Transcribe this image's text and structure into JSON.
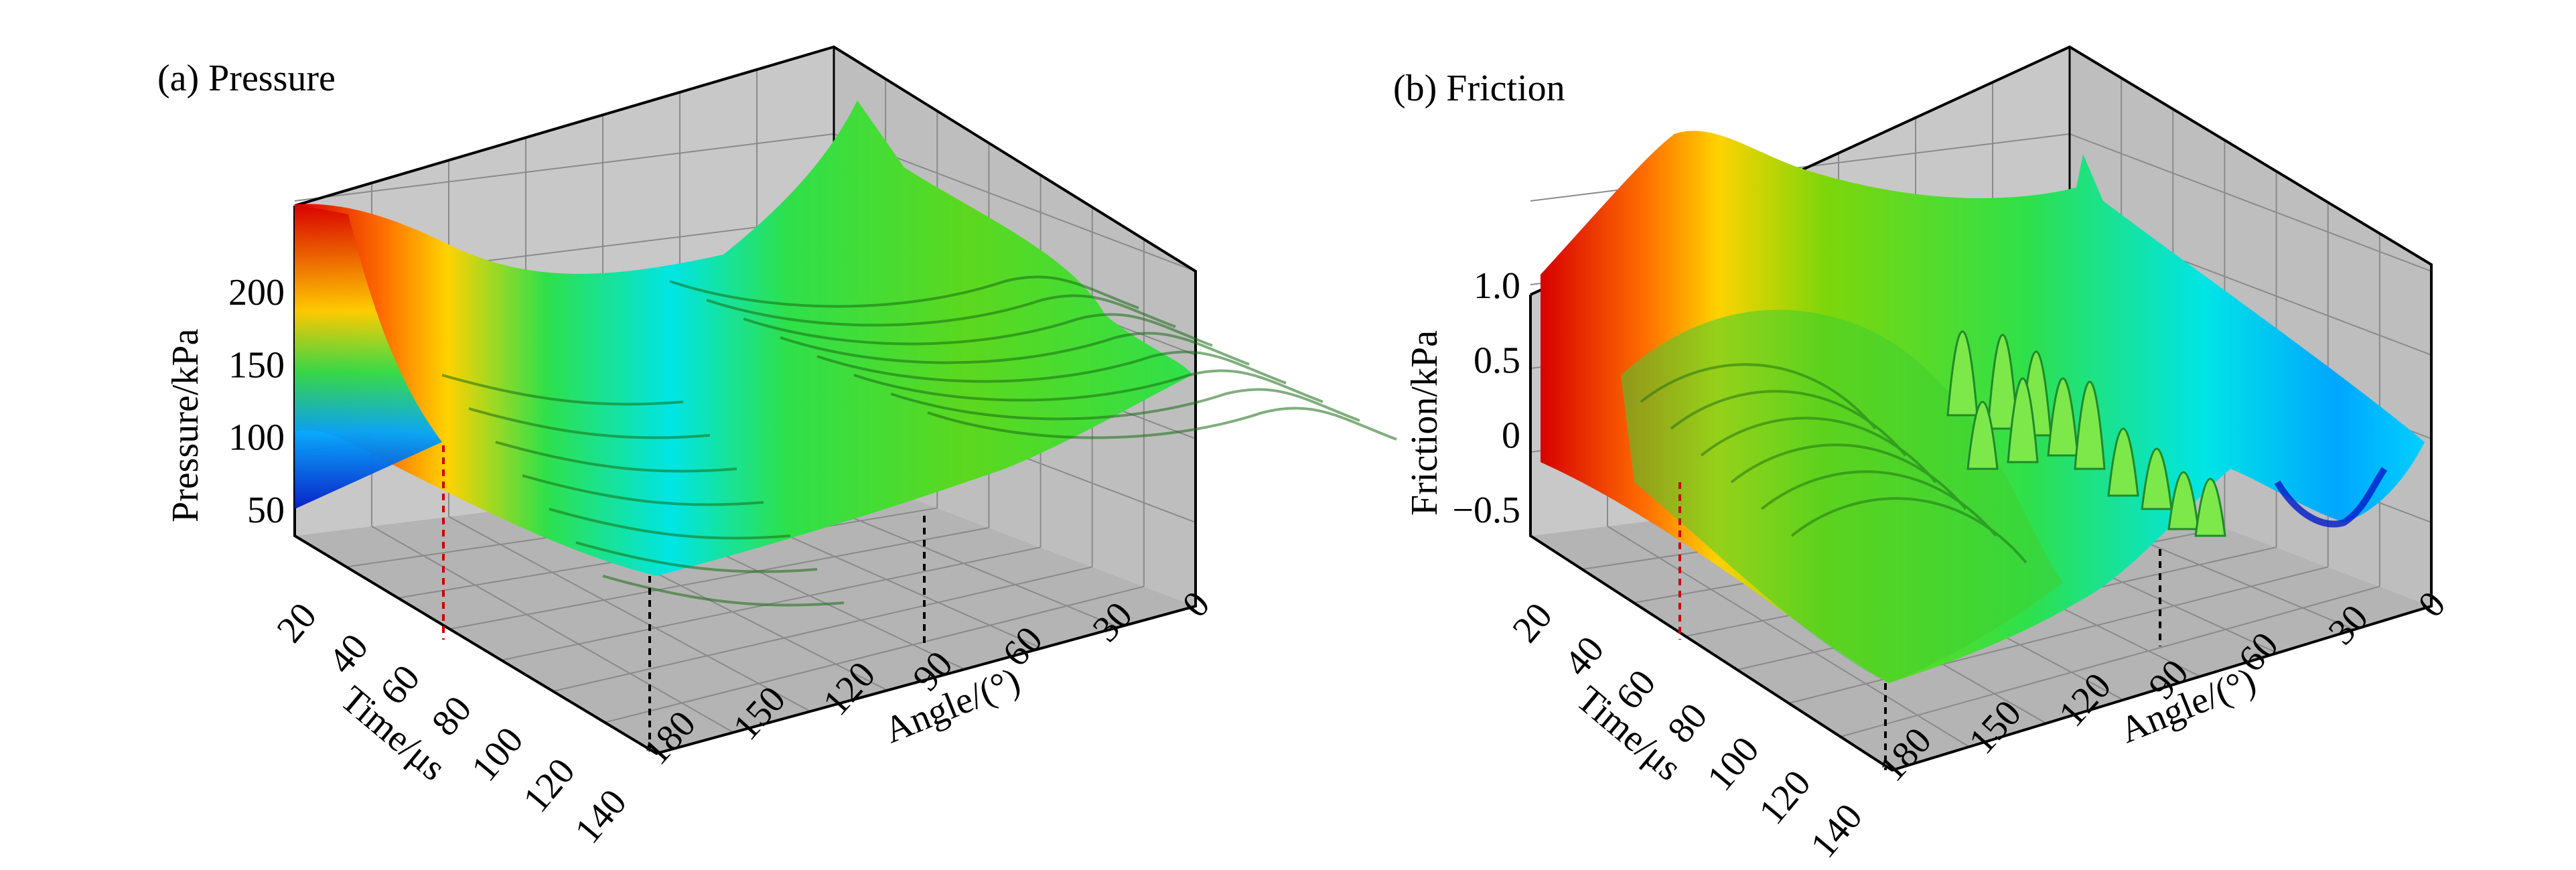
{
  "chart_data": [
    {
      "type": "surface3d",
      "title": "(a) Pressure",
      "zlabel": "Pressure/kPa",
      "xlabel": "Time/μs",
      "ylabel": "Angle/(°)",
      "x_ticks": [
        "20",
        "40",
        "60",
        "80",
        "100",
        "120",
        "140"
      ],
      "y_ticks": [
        "180",
        "150",
        "120",
        "90",
        "60",
        "30",
        "0"
      ],
      "z_ticks": [
        "50",
        "100",
        "150",
        "200"
      ],
      "xlim": [
        10,
        140
      ],
      "ylim": [
        0,
        180
      ],
      "zlim": [
        50,
        250
      ],
      "colormap": [
        "#0019c8",
        "#00a6ff",
        "#00e5e5",
        "#2fe04a",
        "#9ad400",
        "#ffd200",
        "#ff7000",
        "#d80000"
      ],
      "markers": [
        {
          "axis": "time",
          "value": 55,
          "color": "#cc0000"
        },
        {
          "axis": "angle",
          "value": 90,
          "color": "#000000"
        },
        {
          "axis": "time",
          "value": 140,
          "color": "#000000"
        }
      ],
      "surface_summary": [
        {
          "time": 10,
          "angle": 180,
          "value": 240
        },
        {
          "time": 10,
          "angle": 0,
          "value": 125
        },
        {
          "time": 140,
          "angle": 180,
          "value": 130
        },
        {
          "time": 140,
          "angle": 0,
          "value": 130
        }
      ]
    },
    {
      "type": "surface3d",
      "title": "(b) Friction",
      "zlabel": "Friction/kPa",
      "xlabel": "Time/μs",
      "ylabel": "Angle/(°)",
      "x_ticks": [
        "20",
        "40",
        "60",
        "80",
        "100",
        "120",
        "140"
      ],
      "y_ticks": [
        "180",
        "150",
        "120",
        "90",
        "60",
        "30",
        "0"
      ],
      "z_ticks": [
        "−0.5",
        "0",
        "0.5",
        "1.0"
      ],
      "xlim": [
        10,
        140
      ],
      "ylim": [
        0,
        180
      ],
      "zlim": [
        -0.5,
        1.5
      ],
      "colormap": [
        "#0019c8",
        "#00a6ff",
        "#00e5e5",
        "#2fe04a",
        "#9ad400",
        "#ffd200",
        "#ff7000",
        "#d80000"
      ],
      "markers": [
        {
          "axis": "time",
          "value": 55,
          "color": "#cc0000"
        },
        {
          "axis": "angle",
          "value": 90,
          "color": "#000000"
        },
        {
          "axis": "time",
          "value": 140,
          "color": "#000000"
        }
      ],
      "surface_summary": [
        {
          "time": 10,
          "angle": 180,
          "value": 1.4
        },
        {
          "time": 10,
          "angle": 0,
          "value": 1.0
        },
        {
          "time": 140,
          "angle": 90,
          "value": 0.3
        },
        {
          "time": 140,
          "angle": 0,
          "value": -0.3
        }
      ]
    }
  ]
}
